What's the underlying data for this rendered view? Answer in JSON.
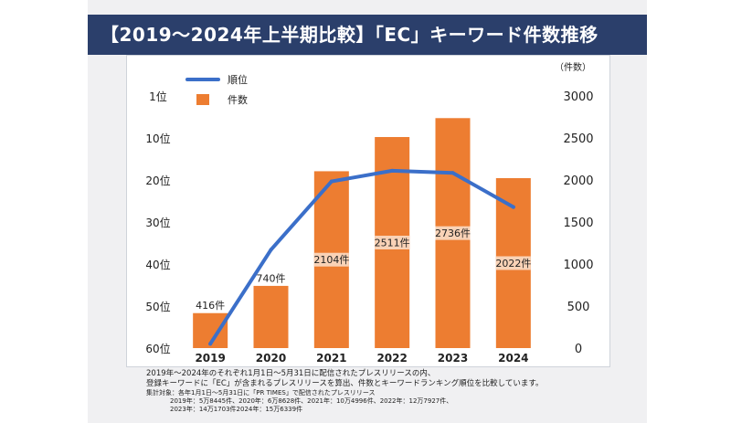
{
  "title": "【2019～2024年上半期比較】「EC」キーワード件数推移",
  "chart_data": {
    "type": "bar",
    "categories": [
      "2019",
      "2020",
      "2021",
      "2022",
      "2023",
      "2024"
    ],
    "series": [
      {
        "name": "件数",
        "kind": "bar",
        "axis": "right",
        "color": "#ed7d31",
        "values": [
          416,
          740,
          2104,
          2511,
          2736,
          2022
        ],
        "labels": [
          "416件",
          "740件",
          "2104件",
          "2511件",
          "2736件",
          "2022件"
        ]
      },
      {
        "name": "順位",
        "kind": "line",
        "axis": "left",
        "color": "#3b6fc9",
        "values": [
          59,
          37,
          21,
          18.5,
          19,
          27
        ]
      }
    ],
    "y_left": {
      "ticks": [
        "1位",
        "10位",
        "20位",
        "30位",
        "40位",
        "50位",
        "60位"
      ],
      "range": [
        1,
        60
      ],
      "inverted": true
    },
    "y_right": {
      "unit_label": "（件数）",
      "ticks": [
        "3000",
        "2500",
        "2000",
        "1500",
        "1000",
        "500",
        "0"
      ],
      "range": [
        0,
        3000
      ]
    },
    "legend_position": "top-left",
    "grid": false
  },
  "notes": {
    "line1": "2019年～2024年のそれぞれ1月1日～5月31日に配信されたプレスリリースの内、",
    "line2": "登録キーワードに「EC」が含まれるプレスリリースを算出、件数とキーワードランキング順位を比較しています。",
    "line3": "集計対象：各年1月1日～5月31日に「PR TIMES」で配信されたプレスリリース",
    "line4": "2019年：5万8445件、2020年：6万8628件、2021年：10万4996件、2022年：12万7927件、",
    "line5": "2023年：14万1703件2024年：15万6339件"
  }
}
